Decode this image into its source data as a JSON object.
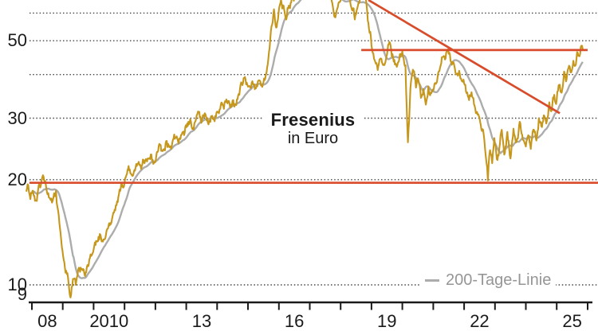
{
  "chart_data": {
    "type": "line",
    "title": "Fresenius",
    "subtitle": "in Euro",
    "legend": {
      "label": "200-Tage-Linie",
      "position": "bottom-right"
    },
    "colors": {
      "price": "#C6971D",
      "moving_average": "#ACACAC",
      "annotation": "#D84C2B",
      "grid": "#454545",
      "axis": "#1a1a1a",
      "text": "#1a1a1a",
      "legend_text": "#969696",
      "background": "#ffffff"
    },
    "y_axis": {
      "scale": "log",
      "unit": "EUR",
      "value_at_top": 65.4,
      "value_at_axis": 8.93,
      "gridlines": [
        60,
        50,
        40,
        30,
        20,
        10
      ],
      "labels": [
        {
          "text": "50",
          "value": 50
        },
        {
          "text": "30",
          "value": 30
        },
        {
          "text": "20",
          "value": 20
        },
        {
          "text": "10",
          "value": 10
        },
        {
          "text": "9",
          "value": 9
        }
      ]
    },
    "x_axis": {
      "tick_years": [
        2008,
        2009,
        2010,
        2011,
        2012,
        2013,
        2014,
        2015,
        2016,
        2017,
        2018,
        2019,
        2020,
        2021,
        2022,
        2023,
        2024,
        2025,
        2026
      ],
      "labels": [
        {
          "text": "08",
          "center_year": 2008.5
        },
        {
          "text": "2010",
          "center_year": 2010.5
        },
        {
          "text": "13",
          "center_year": 2013.5
        },
        {
          "text": "16",
          "center_year": 2016.5
        },
        {
          "text": "19",
          "center_year": 2019.5
        },
        {
          "text": "22",
          "center_year": 2022.5
        },
        {
          "text": "25",
          "center_year": 2025.5
        }
      ]
    },
    "annotations": [
      {
        "type": "hline",
        "value": 19.6,
        "from_year": 2007.92,
        "to_year": 2026.34,
        "role": "support"
      },
      {
        "type": "hline",
        "value": 47.0,
        "from_year": 2018.67,
        "to_year": 2026.0,
        "role": "resistance"
      },
      {
        "type": "segment",
        "from": [
          2018.9,
          65.4
        ],
        "to": [
          2025.1,
          31.0
        ],
        "role": "downtrend"
      }
    ],
    "series": [
      {
        "name": "Fresenius",
        "role": "price",
        "points": [
          [
            2007.82,
            18.5
          ],
          [
            2007.88,
            19.3
          ],
          [
            2007.95,
            17.6
          ],
          [
            2008.02,
            18.6
          ],
          [
            2008.1,
            17.4
          ],
          [
            2008.18,
            18.2
          ],
          [
            2008.27,
            19.0
          ],
          [
            2008.36,
            20.6
          ],
          [
            2008.45,
            19.4
          ],
          [
            2008.55,
            17.8
          ],
          [
            2008.65,
            17.2
          ],
          [
            2008.72,
            18.3
          ],
          [
            2008.78,
            18.6
          ],
          [
            2008.85,
            16.3
          ],
          [
            2008.95,
            13.4
          ],
          [
            2009.05,
            11.6
          ],
          [
            2009.15,
            10.8
          ],
          [
            2009.25,
            9.2
          ],
          [
            2009.33,
            10.4
          ],
          [
            2009.42,
            10.0
          ],
          [
            2009.52,
            11.2
          ],
          [
            2009.62,
            11.1
          ],
          [
            2009.72,
            10.6
          ],
          [
            2009.82,
            11.3
          ],
          [
            2009.92,
            12.1
          ],
          [
            2010.02,
            12.9
          ],
          [
            2010.12,
            13.3
          ],
          [
            2010.22,
            13.9
          ],
          [
            2010.32,
            13.5
          ],
          [
            2010.42,
            14.3
          ],
          [
            2010.52,
            14.8
          ],
          [
            2010.62,
            15.8
          ],
          [
            2010.72,
            16.9
          ],
          [
            2010.82,
            18.2
          ],
          [
            2010.92,
            19.4
          ],
          [
            2011.0,
            19.6
          ],
          [
            2011.08,
            20.8
          ],
          [
            2011.17,
            21.4
          ],
          [
            2011.26,
            20.5
          ],
          [
            2011.36,
            21.7
          ],
          [
            2011.46,
            22.5
          ],
          [
            2011.56,
            21.9
          ],
          [
            2011.65,
            22.3
          ],
          [
            2011.75,
            23.0
          ],
          [
            2011.85,
            23.6
          ],
          [
            2011.95,
            22.3
          ],
          [
            2012.05,
            24.0
          ],
          [
            2012.15,
            25.1
          ],
          [
            2012.25,
            24.2
          ],
          [
            2012.35,
            25.8
          ],
          [
            2012.45,
            24.8
          ],
          [
            2012.55,
            25.6
          ],
          [
            2012.65,
            26.4
          ],
          [
            2012.75,
            25.4
          ],
          [
            2012.85,
            26.9
          ],
          [
            2012.95,
            27.3
          ],
          [
            2013.05,
            28.5
          ],
          [
            2013.15,
            29.4
          ],
          [
            2013.22,
            28.1
          ],
          [
            2013.32,
            29.9
          ],
          [
            2013.42,
            31.3
          ],
          [
            2013.52,
            29.8
          ],
          [
            2013.62,
            30.8
          ],
          [
            2013.72,
            28.8
          ],
          [
            2013.82,
            30.3
          ],
          [
            2013.92,
            29.4
          ],
          [
            2014.02,
            31.2
          ],
          [
            2014.12,
            32.8
          ],
          [
            2014.22,
            31.9
          ],
          [
            2014.32,
            33.4
          ],
          [
            2014.42,
            32.2
          ],
          [
            2014.52,
            33.8
          ],
          [
            2014.62,
            32.7
          ],
          [
            2014.72,
            35.0
          ],
          [
            2014.82,
            37.3
          ],
          [
            2014.92,
            38.8
          ],
          [
            2015.02,
            37.0
          ],
          [
            2015.12,
            37.9
          ],
          [
            2015.22,
            36.3
          ],
          [
            2015.32,
            38.2
          ],
          [
            2015.42,
            37.2
          ],
          [
            2015.52,
            39.0
          ],
          [
            2015.6,
            40.6
          ],
          [
            2015.68,
            46.5
          ],
          [
            2015.76,
            55.0
          ],
          [
            2015.84,
            61.5
          ],
          [
            2015.91,
            54.5
          ],
          [
            2015.99,
            60.0
          ],
          [
            2016.07,
            65.5
          ],
          [
            2016.15,
            63.0
          ],
          [
            2016.24,
            57.5
          ],
          [
            2016.32,
            63.0
          ],
          [
            2016.42,
            66.5
          ],
          [
            2016.55,
            69.5
          ],
          [
            2016.7,
            72.5
          ],
          [
            2016.85,
            70.5
          ],
          [
            2017.0,
            72.5
          ],
          [
            2017.15,
            75.0
          ],
          [
            2017.3,
            77.5
          ],
          [
            2017.45,
            79.0
          ],
          [
            2017.55,
            74.0
          ],
          [
            2017.65,
            67.5
          ],
          [
            2017.75,
            62.5
          ],
          [
            2017.85,
            59.5
          ],
          [
            2017.95,
            64.5
          ],
          [
            2018.05,
            67.5
          ],
          [
            2018.15,
            69.5
          ],
          [
            2018.28,
            67.0
          ],
          [
            2018.38,
            61.0
          ],
          [
            2018.46,
            57.5
          ],
          [
            2018.56,
            63.0
          ],
          [
            2018.64,
            67.5
          ],
          [
            2018.72,
            69.0
          ],
          [
            2018.82,
            65.5
          ],
          [
            2018.92,
            54.0
          ],
          [
            2019.0,
            48.5
          ],
          [
            2019.1,
            44.0
          ],
          [
            2019.2,
            41.2
          ],
          [
            2019.3,
            44.5
          ],
          [
            2019.4,
            42.8
          ],
          [
            2019.5,
            45.5
          ],
          [
            2019.6,
            49.2
          ],
          [
            2019.7,
            44.8
          ],
          [
            2019.8,
            42.6
          ],
          [
            2019.9,
            44.3
          ],
          [
            2020.0,
            46.6
          ],
          [
            2020.1,
            42.5
          ],
          [
            2020.18,
            25.6
          ],
          [
            2020.26,
            36.5
          ],
          [
            2020.34,
            41.3
          ],
          [
            2020.44,
            36.7
          ],
          [
            2020.52,
            38.5
          ],
          [
            2020.6,
            34.3
          ],
          [
            2020.68,
            36.4
          ],
          [
            2020.76,
            32.8
          ],
          [
            2020.84,
            37.0
          ],
          [
            2020.94,
            35.4
          ],
          [
            2021.04,
            37.6
          ],
          [
            2021.14,
            39.3
          ],
          [
            2021.24,
            42.5
          ],
          [
            2021.34,
            45.2
          ],
          [
            2021.44,
            46.6
          ],
          [
            2021.54,
            45.6
          ],
          [
            2021.64,
            43.0
          ],
          [
            2021.74,
            40.1
          ],
          [
            2021.84,
            41.0
          ],
          [
            2021.94,
            38.2
          ],
          [
            2022.04,
            37.4
          ],
          [
            2022.14,
            34.4
          ],
          [
            2022.24,
            35.6
          ],
          [
            2022.34,
            32.6
          ],
          [
            2022.44,
            30.7
          ],
          [
            2022.54,
            28.7
          ],
          [
            2022.63,
            27.1
          ],
          [
            2022.7,
            23.4
          ],
          [
            2022.77,
            19.9
          ],
          [
            2022.84,
            24.3
          ],
          [
            2022.91,
            22.3
          ],
          [
            2022.98,
            26.3
          ],
          [
            2023.06,
            22.9
          ],
          [
            2023.14,
            24.6
          ],
          [
            2023.22,
            27.8
          ],
          [
            2023.3,
            23.6
          ],
          [
            2023.4,
            27.4
          ],
          [
            2023.5,
            23.0
          ],
          [
            2023.6,
            28.0
          ],
          [
            2023.7,
            25.7
          ],
          [
            2023.8,
            29.3
          ],
          [
            2023.9,
            26.1
          ],
          [
            2024.0,
            24.9
          ],
          [
            2024.08,
            26.8
          ],
          [
            2024.16,
            24.5
          ],
          [
            2024.26,
            27.8
          ],
          [
            2024.34,
            25.9
          ],
          [
            2024.42,
            30.0
          ],
          [
            2024.52,
            28.3
          ],
          [
            2024.6,
            30.4
          ],
          [
            2024.68,
            29.4
          ],
          [
            2024.76,
            33.3
          ],
          [
            2024.84,
            31.6
          ],
          [
            2024.92,
            35.0
          ],
          [
            2025.0,
            33.9
          ],
          [
            2025.08,
            37.4
          ],
          [
            2025.16,
            35.5
          ],
          [
            2025.24,
            40.8
          ],
          [
            2025.32,
            38.8
          ],
          [
            2025.4,
            42.4
          ],
          [
            2025.47,
            40.6
          ],
          [
            2025.54,
            43.8
          ],
          [
            2025.6,
            42.4
          ],
          [
            2025.66,
            46.4
          ],
          [
            2025.72,
            45.2
          ],
          [
            2025.78,
            48.0
          ],
          [
            2025.84,
            47.3
          ]
        ]
      },
      {
        "name": "200-Tage-Linie",
        "role": "moving_average",
        "derived": "trailing_mean_of_price",
        "window_years": 0.55,
        "start_year": 2008.05
      }
    ],
    "noise": {
      "seed": 11,
      "step_years": 0.02,
      "jitter_log": 0.0075,
      "wave_log": 0.013
    }
  }
}
